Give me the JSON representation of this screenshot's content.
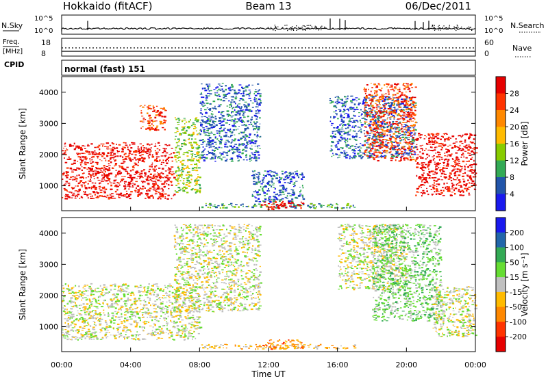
{
  "header": {
    "station": "Hokkaido (fitACF)",
    "beam": "Beam 13",
    "date": "06/Dec/2011"
  },
  "status_panels": {
    "nsky_label": "N.Sky",
    "nsky_ticks": [
      "10^5",
      "10^0"
    ],
    "nsearch_label": "N.Search",
    "freq_label_line1": "Freq.",
    "freq_label_line2": "[MHz]",
    "freq_ticks": [
      "18",
      "8"
    ],
    "nave_label": "Nave",
    "nave_ticks": [
      "60",
      "0"
    ],
    "cpid_label": "CPID",
    "cpid_value": "normal (fast) 151"
  },
  "chart_data": [
    {
      "type": "heatmap",
      "quantity": "power",
      "ylabel": "Slant Range [km]",
      "xlabel": "Time UT",
      "x_ticks": [
        "00:00",
        "04:00",
        "08:00",
        "12:00",
        "16:00",
        "20:00",
        "00:00"
      ],
      "x_range_hours": [
        0,
        24
      ],
      "y_ticks": [
        1000,
        2000,
        3000,
        4000
      ],
      "ylim": [
        200,
        4500
      ],
      "colorbar_label": "Power [dB]",
      "colorbar_ticks": [
        "28",
        "24",
        "20",
        "16",
        "12",
        "8",
        "4"
      ],
      "colorbar_colors": [
        "#e60000",
        "#ff3300",
        "#ff8800",
        "#ffbb00",
        "#88cc00",
        "#33aa55",
        "#2255aa",
        "#1a1aee"
      ],
      "regions": [
        {
          "t0": 0.0,
          "t1": 6.5,
          "r0": 600,
          "r1": 2400,
          "tone": 0
        },
        {
          "t0": 4.5,
          "t1": 6.0,
          "r0": 2800,
          "r1": 3600,
          "tone": 1
        },
        {
          "t0": 6.5,
          "t1": 8.0,
          "r0": 800,
          "r1": 3200,
          "tone": 4
        },
        {
          "t0": 8.0,
          "t1": 11.5,
          "r0": 1800,
          "r1": 4300,
          "tone": 6
        },
        {
          "t0": 8.0,
          "t1": 17.0,
          "r0": 300,
          "r1": 450,
          "tone": 5
        },
        {
          "t0": 11.5,
          "t1": 14.0,
          "r0": 250,
          "r1": 550,
          "tone": 0
        },
        {
          "t0": 11.0,
          "t1": 14.0,
          "r0": 500,
          "r1": 1500,
          "tone": 6
        },
        {
          "t0": 15.5,
          "t1": 20.5,
          "r0": 1900,
          "r1": 3900,
          "tone": 6
        },
        {
          "t0": 17.5,
          "t1": 20.5,
          "r0": 1800,
          "r1": 4300,
          "tone": 1
        },
        {
          "t0": 20.5,
          "t1": 24.0,
          "r0": 700,
          "r1": 2700,
          "tone": 0
        }
      ]
    },
    {
      "type": "heatmap",
      "quantity": "velocity",
      "ylabel": "Slant Range [km]",
      "xlabel": "Time UT",
      "x_ticks": [
        "00:00",
        "04:00",
        "08:00",
        "12:00",
        "16:00",
        "20:00",
        "00:00"
      ],
      "x_range_hours": [
        0,
        24
      ],
      "y_ticks": [
        1000,
        2000,
        3000,
        4000
      ],
      "ylim": [
        200,
        4500
      ],
      "colorbar_label": "Velocity [m s⁻¹]",
      "colorbar_ticks": [
        "200",
        "100",
        "50",
        "15",
        "-15",
        "-50",
        "-100",
        "-200"
      ],
      "colorbar_colors": [
        "#1a1aee",
        "#2266aa",
        "#33aa55",
        "#66dd33",
        "#c0c0c0",
        "#ffbb00",
        "#ff8800",
        "#ff3300",
        "#e60000"
      ],
      "regions": [
        {
          "t0": 0.0,
          "t1": 8.0,
          "r0": 600,
          "r1": 2400,
          "tone": 4
        },
        {
          "t0": 6.5,
          "t1": 11.5,
          "r0": 1500,
          "r1": 4300,
          "tone": 4
        },
        {
          "t0": 8.0,
          "t1": 17.0,
          "r0": 300,
          "r1": 450,
          "tone": 5
        },
        {
          "t0": 11.5,
          "t1": 14.0,
          "r0": 300,
          "r1": 600,
          "tone": 6
        },
        {
          "t0": 16.0,
          "t1": 20.0,
          "r0": 2200,
          "r1": 4300,
          "tone": 4
        },
        {
          "t0": 18.0,
          "t1": 22.0,
          "r0": 1200,
          "r1": 4300,
          "tone": 3
        },
        {
          "t0": 21.5,
          "t1": 24.0,
          "r0": 700,
          "r1": 2300,
          "tone": 4
        }
      ]
    }
  ]
}
